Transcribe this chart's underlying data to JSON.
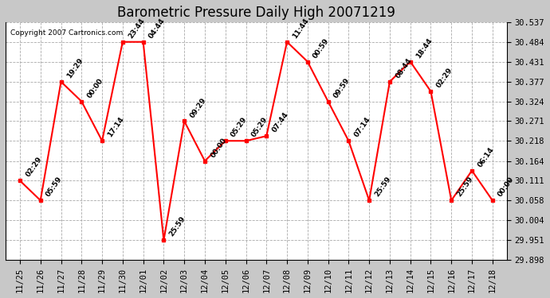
{
  "title": "Barometric Pressure Daily High 20071219",
  "copyright": "Copyright 2007 Cartronics.com",
  "x_labels": [
    "11/25",
    "11/26",
    "11/27",
    "11/28",
    "11/29",
    "11/30",
    "12/01",
    "12/02",
    "12/03",
    "12/04",
    "12/05",
    "12/06",
    "12/07",
    "12/08",
    "12/09",
    "12/10",
    "12/11",
    "12/12",
    "12/13",
    "12/14",
    "12/15",
    "12/16",
    "12/17",
    "12/18"
  ],
  "y_values": [
    30.111,
    30.058,
    30.377,
    30.324,
    30.218,
    30.484,
    30.484,
    29.951,
    30.271,
    30.164,
    30.218,
    30.218,
    30.231,
    30.484,
    30.431,
    30.324,
    30.218,
    30.058,
    30.377,
    30.431,
    30.351,
    30.058,
    30.138,
    30.058
  ],
  "point_labels": [
    "02:29",
    "05:59",
    "19:29",
    "00:00",
    "17:14",
    "23:44",
    "04:44",
    "25:59",
    "09:29",
    "00:00",
    "05:29",
    "05:29",
    "07:44",
    "11:44",
    "00:59",
    "09:59",
    "07:14",
    "25:59",
    "08:44",
    "18:44",
    "02:29",
    "25:59",
    "06:14",
    "00:00"
  ],
  "y_min": 29.898,
  "y_max": 30.537,
  "y_ticks": [
    29.898,
    29.951,
    30.004,
    30.058,
    30.111,
    30.164,
    30.218,
    30.271,
    30.324,
    30.377,
    30.431,
    30.484,
    30.537
  ],
  "line_color": "#ff0000",
  "marker_color": "#ff0000",
  "outer_bg_color": "#c8c8c8",
  "plot_bg_color": "#ffffff",
  "grid_color": "#aaaaaa",
  "title_fontsize": 12,
  "tick_fontsize": 7.5,
  "annotation_fontsize": 6.5
}
